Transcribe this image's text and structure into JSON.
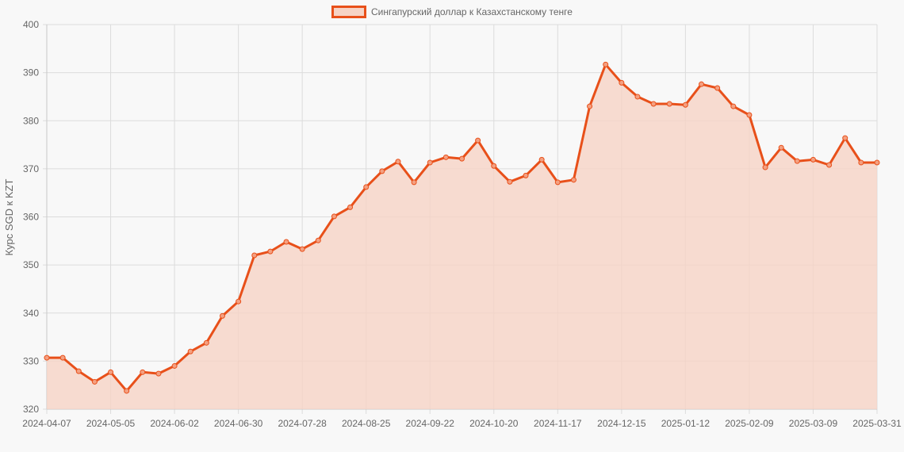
{
  "legend": {
    "label": "Сингапурский доллар к Казахстанскому тенге",
    "line_color": "#e8501a",
    "fill_color": "#f6d3c5"
  },
  "chart_data": {
    "type": "area",
    "title": "",
    "series": [
      {
        "name": "Сингапурский доллар к Казахстанскому тенге",
        "values": [
          330.7,
          330.7,
          327.9,
          325.7,
          327.7,
          323.8,
          327.7,
          327.4,
          329.0,
          332.0,
          333.8,
          339.4,
          342.4,
          352.0,
          352.8,
          354.8,
          353.3,
          355.1,
          360.1,
          362.0,
          366.2,
          369.5,
          371.5,
          367.2,
          371.3,
          372.4,
          372.1,
          375.9,
          370.6,
          367.3,
          368.6,
          371.9,
          367.2,
          367.7,
          383.0,
          391.7,
          387.9,
          385.0,
          383.5,
          383.5,
          383.3,
          387.6,
          386.8,
          383.0,
          381.2,
          370.3,
          374.4,
          371.6,
          371.9,
          370.8,
          376.4,
          371.3,
          371.3
        ]
      }
    ],
    "x_tick_labels": [
      "2024-04-07",
      "2024-05-05",
      "2024-06-02",
      "2024-06-30",
      "2024-07-28",
      "2024-08-25",
      "2024-09-22",
      "2024-10-20",
      "2024-11-17",
      "2024-12-15",
      "2025-01-12",
      "2025-02-09",
      "2025-03-09",
      "2025-03-31"
    ],
    "x_start": "2024-04-07",
    "x_end": "2025-03-31",
    "x_interval": "weekly",
    "xlabel": "",
    "ylabel": "Курс SGD к KZT",
    "y_tick_labels": [
      "320",
      "330",
      "340",
      "350",
      "360",
      "370",
      "380",
      "390",
      "400"
    ],
    "ylim": [
      320,
      400
    ],
    "grid": true,
    "legend_position": "top"
  }
}
